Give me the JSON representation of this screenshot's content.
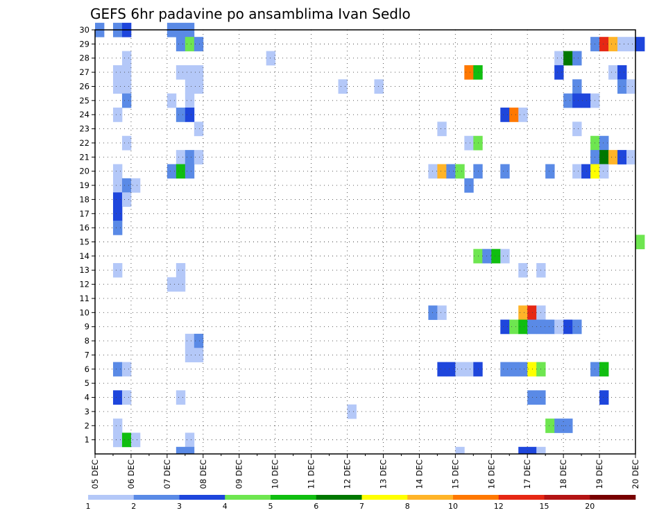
{
  "chart_data": {
    "type": "heatmap",
    "title": "GEFS 6hr padavine po ansamblima Ivan Sedlo",
    "xlabel": "",
    "ylabel": "",
    "x_tick_labels": [
      "05 DEC",
      "06 DEC",
      "07 DEC",
      "08 DEC",
      "09 DEC",
      "10 DEC",
      "11 DEC",
      "12 DEC",
      "13 DEC",
      "14 DEC",
      "15 DEC",
      "16 DEC",
      "17 DEC",
      "18 DEC",
      "19 DEC",
      "20 DEC"
    ],
    "y_tick_labels": [
      "1",
      "2",
      "3",
      "4",
      "5",
      "6",
      "7",
      "8",
      "9",
      "10",
      "11",
      "12",
      "13",
      "14",
      "15",
      "16",
      "17",
      "18",
      "19",
      "20",
      "21",
      "22",
      "23",
      "24",
      "25",
      "26",
      "27",
      "28",
      "29",
      "30"
    ],
    "x_range_days": [
      0,
      15
    ],
    "y_range": [
      0,
      30
    ],
    "grid": true,
    "legend_position": "bottom",
    "colorbar": {
      "labels": [
        "1",
        "2",
        "3",
        "4",
        "5",
        "6",
        "7",
        "8",
        "10",
        "12",
        "15",
        "20"
      ],
      "colors": [
        "#b4c8f8",
        "#5a8ae6",
        "#1e46dc",
        "#6ee650",
        "#10be10",
        "#007800",
        "#ffff00",
        "#ffb428",
        "#ff7800",
        "#e62814",
        "#b41414",
        "#780000"
      ]
    },
    "cells": [
      [
        0.5,
        30,
        1
      ],
      [
        0.75,
        30,
        2
      ],
      [
        0.0,
        30,
        1
      ],
      [
        2.0,
        30,
        1
      ],
      [
        2.25,
        30,
        1
      ],
      [
        2.5,
        30,
        1
      ],
      [
        2.25,
        29,
        1
      ],
      [
        2.5,
        29,
        3
      ],
      [
        2.75,
        29,
        1
      ],
      [
        13.75,
        29,
        1
      ],
      [
        14.0,
        29,
        9
      ],
      [
        14.25,
        29,
        7
      ],
      [
        14.5,
        29,
        0
      ],
      [
        14.75,
        29,
        0
      ],
      [
        15.0,
        29,
        2
      ],
      [
        0.75,
        28,
        0
      ],
      [
        4.75,
        28,
        0
      ],
      [
        12.75,
        28,
        0
      ],
      [
        13.0,
        28,
        5
      ],
      [
        13.25,
        28,
        1
      ],
      [
        0.5,
        27,
        0
      ],
      [
        0.75,
        27,
        0
      ],
      [
        2.25,
        27,
        0
      ],
      [
        2.5,
        27,
        0
      ],
      [
        2.75,
        27,
        0
      ],
      [
        10.25,
        27,
        8
      ],
      [
        10.5,
        27,
        4
      ],
      [
        12.75,
        27,
        2
      ],
      [
        14.25,
        27,
        0
      ],
      [
        14.5,
        27,
        2
      ],
      [
        0.5,
        26,
        0
      ],
      [
        0.75,
        26,
        0
      ],
      [
        2.5,
        26,
        0
      ],
      [
        2.75,
        26,
        0
      ],
      [
        6.75,
        26,
        0
      ],
      [
        7.75,
        26,
        0
      ],
      [
        13.25,
        26,
        1
      ],
      [
        14.5,
        26,
        1
      ],
      [
        14.75,
        26,
        0
      ],
      [
        0.75,
        25,
        1
      ],
      [
        2.0,
        25,
        0
      ],
      [
        2.5,
        25,
        0
      ],
      [
        13.0,
        25,
        1
      ],
      [
        13.25,
        25,
        2
      ],
      [
        13.5,
        25,
        2
      ],
      [
        13.75,
        25,
        0
      ],
      [
        0.5,
        24,
        0
      ],
      [
        2.25,
        24,
        1
      ],
      [
        2.5,
        24,
        2
      ],
      [
        11.25,
        24,
        2
      ],
      [
        11.5,
        24,
        8
      ],
      [
        11.75,
        24,
        0
      ],
      [
        2.75,
        23,
        0
      ],
      [
        9.5,
        23,
        0
      ],
      [
        13.25,
        23,
        0
      ],
      [
        0.75,
        22,
        0
      ],
      [
        10.25,
        22,
        0
      ],
      [
        10.5,
        22,
        3
      ],
      [
        13.75,
        22,
        3
      ],
      [
        14.0,
        22,
        1
      ],
      [
        2.25,
        21,
        0
      ],
      [
        2.5,
        21,
        1
      ],
      [
        2.75,
        21,
        0
      ],
      [
        13.75,
        21,
        1
      ],
      [
        14.0,
        21,
        5
      ],
      [
        14.25,
        21,
        7
      ],
      [
        14.5,
        21,
        2
      ],
      [
        14.75,
        21,
        0
      ],
      [
        0.5,
        20,
        0
      ],
      [
        2.0,
        20,
        1
      ],
      [
        2.25,
        20,
        4
      ],
      [
        2.5,
        20,
        1
      ],
      [
        9.25,
        20,
        0
      ],
      [
        9.5,
        20,
        7
      ],
      [
        9.75,
        20,
        1
      ],
      [
        10.0,
        20,
        3
      ],
      [
        10.5,
        20,
        1
      ],
      [
        11.25,
        20,
        1
      ],
      [
        12.5,
        20,
        1
      ],
      [
        13.25,
        20,
        0
      ],
      [
        13.5,
        20,
        2
      ],
      [
        13.75,
        20,
        6
      ],
      [
        14.0,
        20,
        0
      ],
      [
        0.5,
        19,
        0
      ],
      [
        0.75,
        19,
        1
      ],
      [
        1.0,
        19,
        0
      ],
      [
        10.25,
        19,
        1
      ],
      [
        0.5,
        18,
        2
      ],
      [
        0.75,
        18,
        0
      ],
      [
        0.5,
        17,
        2
      ],
      [
        0.5,
        16,
        1
      ],
      [
        15.0,
        15,
        3
      ],
      [
        10.5,
        14,
        3
      ],
      [
        10.75,
        14,
        1
      ],
      [
        11.0,
        14,
        4
      ],
      [
        11.25,
        14,
        0
      ],
      [
        0.5,
        13,
        0
      ],
      [
        2.25,
        13,
        0
      ],
      [
        11.75,
        13,
        0
      ],
      [
        12.25,
        13,
        0
      ],
      [
        2.0,
        12,
        0
      ],
      [
        2.25,
        12,
        0
      ],
      [
        9.25,
        10,
        1
      ],
      [
        9.5,
        10,
        0
      ],
      [
        11.75,
        10,
        7
      ],
      [
        12.0,
        10,
        9
      ],
      [
        12.25,
        10,
        0
      ],
      [
        11.25,
        9,
        2
      ],
      [
        11.5,
        9,
        3
      ],
      [
        11.75,
        9,
        4
      ],
      [
        12.0,
        9,
        1
      ],
      [
        12.25,
        9,
        1
      ],
      [
        12.5,
        9,
        1
      ],
      [
        12.75,
        9,
        0
      ],
      [
        13.0,
        9,
        2
      ],
      [
        13.25,
        9,
        1
      ],
      [
        2.5,
        8,
        0
      ],
      [
        2.75,
        8,
        1
      ],
      [
        2.5,
        7,
        0
      ],
      [
        2.75,
        7,
        0
      ],
      [
        0.5,
        6,
        1
      ],
      [
        0.75,
        6,
        0
      ],
      [
        9.5,
        6,
        2
      ],
      [
        9.75,
        6,
        2
      ],
      [
        10.0,
        6,
        0
      ],
      [
        10.25,
        6,
        0
      ],
      [
        10.5,
        6,
        2
      ],
      [
        11.25,
        6,
        1
      ],
      [
        11.5,
        6,
        1
      ],
      [
        11.75,
        6,
        1
      ],
      [
        12.0,
        6,
        6
      ],
      [
        12.25,
        6,
        3
      ],
      [
        13.75,
        6,
        1
      ],
      [
        14.0,
        6,
        4
      ],
      [
        0.5,
        4,
        2
      ],
      [
        0.75,
        4,
        0
      ],
      [
        2.25,
        4,
        0
      ],
      [
        12.0,
        4,
        1
      ],
      [
        12.25,
        4,
        1
      ],
      [
        14.0,
        4,
        2
      ],
      [
        7.0,
        3,
        0
      ],
      [
        0.5,
        2,
        0
      ],
      [
        12.5,
        2,
        3
      ],
      [
        12.75,
        2,
        1
      ],
      [
        13.0,
        2,
        1
      ],
      [
        0.5,
        1,
        0
      ],
      [
        0.75,
        1,
        4
      ],
      [
        1.0,
        1,
        0
      ],
      [
        2.5,
        1,
        0
      ],
      [
        2.25,
        0,
        1
      ],
      [
        2.5,
        0,
        1
      ],
      [
        10.0,
        0,
        0
      ],
      [
        11.75,
        0,
        2
      ],
      [
        12.0,
        0,
        2
      ],
      [
        12.25,
        0,
        0
      ]
    ]
  }
}
